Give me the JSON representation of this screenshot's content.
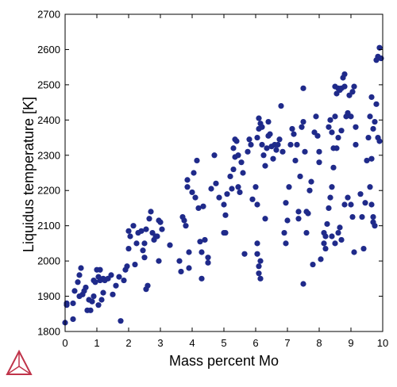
{
  "chart_data": {
    "type": "scatter",
    "title": "",
    "xlabel": "Mass percent Mo",
    "ylabel": "Liquidus temperature [K]",
    "xlim": [
      0,
      10
    ],
    "ylim": [
      1800,
      2700
    ],
    "xticks": [
      0,
      1,
      2,
      3,
      4,
      5,
      6,
      7,
      8,
      9,
      10
    ],
    "yticks": [
      1800,
      1900,
      2000,
      2100,
      2200,
      2300,
      2400,
      2500,
      2600,
      2700
    ],
    "grid": false,
    "legend": "none",
    "marker_color": "#1f2a8a",
    "series": [
      {
        "points": [
          [
            0.0,
            1825
          ],
          [
            0.05,
            1875
          ],
          [
            0.05,
            1880
          ],
          [
            0.25,
            1835
          ],
          [
            0.25,
            1880
          ],
          [
            0.3,
            1915
          ],
          [
            0.4,
            1940
          ],
          [
            0.45,
            1960
          ],
          [
            0.5,
            1980
          ],
          [
            0.45,
            1900
          ],
          [
            0.55,
            1905
          ],
          [
            0.6,
            1915
          ],
          [
            0.65,
            1925
          ],
          [
            0.7,
            1860
          ],
          [
            0.75,
            1890
          ],
          [
            0.8,
            1860
          ],
          [
            0.85,
            1885
          ],
          [
            0.9,
            1900
          ],
          [
            0.95,
            1940
          ],
          [
            0.9,
            1945
          ],
          [
            1.0,
            1975
          ],
          [
            1.05,
            1955
          ],
          [
            1.1,
            1975
          ],
          [
            1.1,
            1945
          ],
          [
            1.05,
            1875
          ],
          [
            1.15,
            1890
          ],
          [
            1.2,
            1910
          ],
          [
            1.2,
            1950
          ],
          [
            1.25,
            1945
          ],
          [
            1.35,
            1950
          ],
          [
            1.45,
            1960
          ],
          [
            1.5,
            1905
          ],
          [
            1.6,
            1930
          ],
          [
            1.7,
            1955
          ],
          [
            1.75,
            1830
          ],
          [
            1.85,
            1945
          ],
          [
            1.9,
            1975
          ],
          [
            1.95,
            1985
          ],
          [
            2.0,
            2035
          ],
          [
            2.0,
            2085
          ],
          [
            2.05,
            2070
          ],
          [
            2.15,
            2100
          ],
          [
            2.2,
            1990
          ],
          [
            2.25,
            2050
          ],
          [
            2.3,
            2080
          ],
          [
            2.4,
            2085
          ],
          [
            2.45,
            2030
          ],
          [
            2.5,
            2050
          ],
          [
            2.5,
            2010
          ],
          [
            2.55,
            2090
          ],
          [
            2.6,
            1930
          ],
          [
            2.55,
            1920
          ],
          [
            2.65,
            2120
          ],
          [
            2.7,
            2140
          ],
          [
            2.75,
            2080
          ],
          [
            2.8,
            2060
          ],
          [
            2.85,
            2070
          ],
          [
            2.9,
            2070
          ],
          [
            2.95,
            2115
          ],
          [
            2.95,
            2000
          ],
          [
            3.0,
            2110
          ],
          [
            3.05,
            2090
          ],
          [
            3.3,
            2045
          ],
          [
            3.6,
            2000
          ],
          [
            3.65,
            1970
          ],
          [
            3.7,
            2125
          ],
          [
            3.75,
            2115
          ],
          [
            3.8,
            2100
          ],
          [
            3.85,
            2210
          ],
          [
            3.85,
            2230
          ],
          [
            3.9,
            2025
          ],
          [
            3.9,
            1980
          ],
          [
            4.0,
            2195
          ],
          [
            4.05,
            2250
          ],
          [
            4.1,
            2180
          ],
          [
            4.15,
            2285
          ],
          [
            4.2,
            2150
          ],
          [
            4.25,
            2055
          ],
          [
            4.3,
            2025
          ],
          [
            4.3,
            1950
          ],
          [
            4.35,
            2155
          ],
          [
            4.4,
            2060
          ],
          [
            4.5,
            2010
          ],
          [
            4.5,
            1995
          ],
          [
            4.6,
            2205
          ],
          [
            4.7,
            2300
          ],
          [
            4.75,
            2220
          ],
          [
            4.85,
            2180
          ],
          [
            5.0,
            2160
          ],
          [
            5.0,
            2080
          ],
          [
            5.05,
            2130
          ],
          [
            5.05,
            2080
          ],
          [
            5.1,
            2190
          ],
          [
            5.2,
            2240
          ],
          [
            5.25,
            2205
          ],
          [
            5.3,
            2260
          ],
          [
            5.3,
            2320
          ],
          [
            5.35,
            2345
          ],
          [
            5.35,
            2295
          ],
          [
            5.4,
            2340
          ],
          [
            5.45,
            2300
          ],
          [
            5.45,
            2210
          ],
          [
            5.5,
            2195
          ],
          [
            5.55,
            2280
          ],
          [
            5.6,
            2250
          ],
          [
            5.65,
            2020
          ],
          [
            5.75,
            2310
          ],
          [
            5.8,
            2345
          ],
          [
            5.85,
            2330
          ],
          [
            5.9,
            2175
          ],
          [
            6.0,
            2210
          ],
          [
            6.05,
            2160
          ],
          [
            6.05,
            2350
          ],
          [
            6.1,
            2375
          ],
          [
            6.1,
            2405
          ],
          [
            6.15,
            2390
          ],
          [
            6.2,
            2380
          ],
          [
            6.2,
            2330
          ],
          [
            6.25,
            2300
          ],
          [
            6.3,
            2270
          ],
          [
            6.3,
            2120
          ],
          [
            6.05,
            2050
          ],
          [
            6.05,
            2020
          ],
          [
            6.1,
            1985
          ],
          [
            6.1,
            1965
          ],
          [
            6.15,
            1950
          ],
          [
            6.15,
            2000
          ],
          [
            6.35,
            2320
          ],
          [
            6.4,
            2355
          ],
          [
            6.4,
            2395
          ],
          [
            6.45,
            2360
          ],
          [
            6.5,
            2325
          ],
          [
            6.55,
            2290
          ],
          [
            6.6,
            2330
          ],
          [
            6.65,
            2315
          ],
          [
            6.7,
            2330
          ],
          [
            6.75,
            2345
          ],
          [
            6.8,
            2440
          ],
          [
            6.85,
            2310
          ],
          [
            6.9,
            2080
          ],
          [
            6.95,
            2165
          ],
          [
            6.95,
            2050
          ],
          [
            7.0,
            2115
          ],
          [
            7.05,
            2210
          ],
          [
            7.1,
            2330
          ],
          [
            7.15,
            2375
          ],
          [
            7.2,
            2360
          ],
          [
            7.25,
            2285
          ],
          [
            7.3,
            2330
          ],
          [
            7.35,
            2140
          ],
          [
            7.35,
            2120
          ],
          [
            7.4,
            2240
          ],
          [
            7.45,
            2380
          ],
          [
            7.5,
            2395
          ],
          [
            7.5,
            2490
          ],
          [
            7.55,
            2310
          ],
          [
            7.6,
            2140
          ],
          [
            7.6,
            2080
          ],
          [
            7.65,
            2135
          ],
          [
            7.7,
            2200
          ],
          [
            7.75,
            2225
          ],
          [
            7.5,
            1935
          ],
          [
            7.8,
            1990
          ],
          [
            7.85,
            2365
          ],
          [
            7.9,
            2410
          ],
          [
            7.95,
            2355
          ],
          [
            8.0,
            2310
          ],
          [
            8.0,
            2280
          ],
          [
            8.05,
            2005
          ],
          [
            8.15,
            2050
          ],
          [
            8.2,
            2035
          ],
          [
            8.3,
            2380
          ],
          [
            8.35,
            2400
          ],
          [
            8.4,
            2365
          ],
          [
            8.45,
            2320
          ],
          [
            8.5,
            2410
          ],
          [
            8.5,
            2495
          ],
          [
            8.55,
            2475
          ],
          [
            8.6,
            2490
          ],
          [
            8.65,
            2485
          ],
          [
            8.7,
            2490
          ],
          [
            8.75,
            2520
          ],
          [
            8.8,
            2495
          ],
          [
            8.8,
            2530
          ],
          [
            8.85,
            2410
          ],
          [
            8.9,
            2420
          ],
          [
            8.95,
            2470
          ],
          [
            9.0,
            2410
          ],
          [
            9.05,
            2480
          ],
          [
            9.1,
            2495
          ],
          [
            9.15,
            2380
          ],
          [
            9.15,
            2330
          ],
          [
            8.7,
            2370
          ],
          [
            8.6,
            2350
          ],
          [
            8.55,
            2320
          ],
          [
            8.45,
            2265
          ],
          [
            8.4,
            2210
          ],
          [
            8.35,
            2180
          ],
          [
            8.3,
            2150
          ],
          [
            8.25,
            2105
          ],
          [
            8.2,
            2070
          ],
          [
            8.15,
            2080
          ],
          [
            8.4,
            2070
          ],
          [
            8.5,
            2050
          ],
          [
            8.6,
            2080
          ],
          [
            8.65,
            2095
          ],
          [
            8.7,
            2060
          ],
          [
            8.8,
            2160
          ],
          [
            8.9,
            2180
          ],
          [
            9.0,
            2160
          ],
          [
            9.05,
            2125
          ],
          [
            9.1,
            2025
          ],
          [
            9.3,
            2190
          ],
          [
            9.35,
            2125
          ],
          [
            9.4,
            2035
          ],
          [
            9.45,
            2165
          ],
          [
            9.5,
            2285
          ],
          [
            9.55,
            2350
          ],
          [
            9.6,
            2410
          ],
          [
            9.65,
            2465
          ],
          [
            9.7,
            2375
          ],
          [
            9.75,
            2395
          ],
          [
            9.8,
            2445
          ],
          [
            9.8,
            2570
          ],
          [
            9.85,
            2580
          ],
          [
            9.9,
            2605
          ],
          [
            9.95,
            2575
          ],
          [
            9.85,
            2350
          ],
          [
            9.9,
            2340
          ],
          [
            9.65,
            2290
          ],
          [
            9.6,
            2210
          ],
          [
            9.65,
            2160
          ],
          [
            9.7,
            2110
          ],
          [
            9.75,
            2100
          ],
          [
            9.7,
            2125
          ]
        ]
      }
    ]
  }
}
